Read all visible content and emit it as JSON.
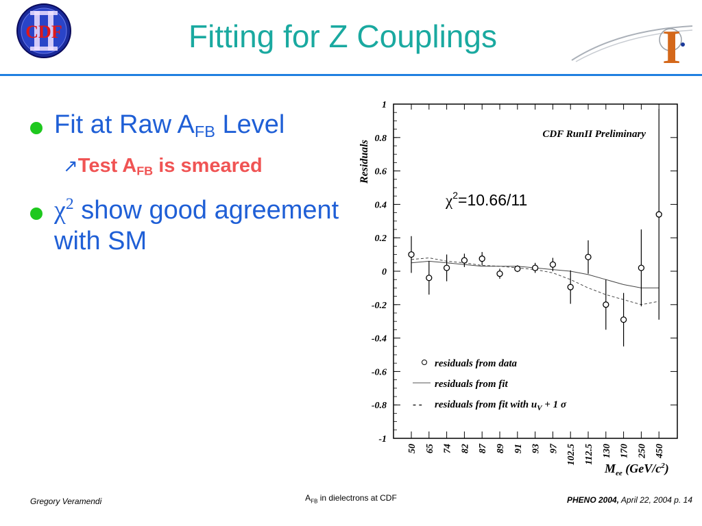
{
  "header": {
    "title": "Fitting for Z Couplings",
    "logo_left_text": "CDF",
    "logo_right_text": "I"
  },
  "bullets": {
    "b1_prefix": "Fit at Raw A",
    "b1_sub": "FB",
    "b1_suffix": " Level",
    "sub_prefix": "Test A",
    "sub_sub": "FB",
    "sub_suffix": " is smeared",
    "b3_chi": "χ",
    "b3_sup": "2",
    "b3_text": " show good agreement with SM"
  },
  "chart_data": {
    "type": "scatter",
    "title": "CDF RunII Preliminary",
    "annotation": "χ²=10.66/11",
    "ylabel": "Residuals",
    "xlabel": "M_ee (GeV/c²)",
    "ylim": [
      -1,
      1
    ],
    "yticks": [
      "1",
      "0.8",
      "0.6",
      "0.4",
      "0.2",
      "0",
      "-0.2",
      "-0.4",
      "-0.6",
      "-0.8",
      "-1"
    ],
    "categories": [
      "50",
      "65",
      "74",
      "82",
      "87",
      "89",
      "91",
      "93",
      "97",
      "102.5",
      "112.5",
      "130",
      "170",
      "250",
      "450"
    ],
    "series": [
      {
        "name": "residuals from data",
        "values": [
          0.1,
          -0.04,
          0.02,
          0.065,
          0.075,
          -0.015,
          0.015,
          0.02,
          0.04,
          -0.095,
          0.085,
          -0.2,
          -0.29,
          0.02,
          0.34
        ],
        "errors": [
          0.11,
          0.1,
          0.08,
          0.04,
          0.04,
          0.03,
          0.02,
          0.03,
          0.04,
          0.1,
          0.1,
          0.15,
          0.16,
          0.23,
          0.63
        ]
      },
      {
        "name": "residuals from fit",
        "values": [
          0.05,
          0.06,
          0.05,
          0.04,
          0.03,
          0.03,
          0.03,
          0.02,
          0.01,
          0.0,
          -0.02,
          -0.05,
          -0.08,
          -0.1,
          -0.1
        ]
      },
      {
        "name": "residuals from fit with u_V + 1 σ",
        "values": [
          0.07,
          0.08,
          0.06,
          0.05,
          0.035,
          0.03,
          0.02,
          0.01,
          -0.01,
          -0.05,
          -0.1,
          -0.14,
          -0.17,
          -0.2,
          -0.18
        ]
      }
    ],
    "legend": [
      {
        "symbol": "○",
        "label": "residuals from data"
      },
      {
        "symbol": "—",
        "label": "residuals from fit"
      },
      {
        "symbol": "- -",
        "label": "residuals from fit with u",
        "label_sub": "V",
        "label_tail": " + 1 σ"
      }
    ],
    "legend_placement": "bottom-left"
  },
  "footer": {
    "left": "Gregory Veramendi",
    "center_a": "A",
    "center_sub": "FB",
    "center_rest": " in dielectrons at CDF",
    "right_bold": "PHENO 2004,",
    "right_rest": " April 22, 2004   p. 14"
  }
}
